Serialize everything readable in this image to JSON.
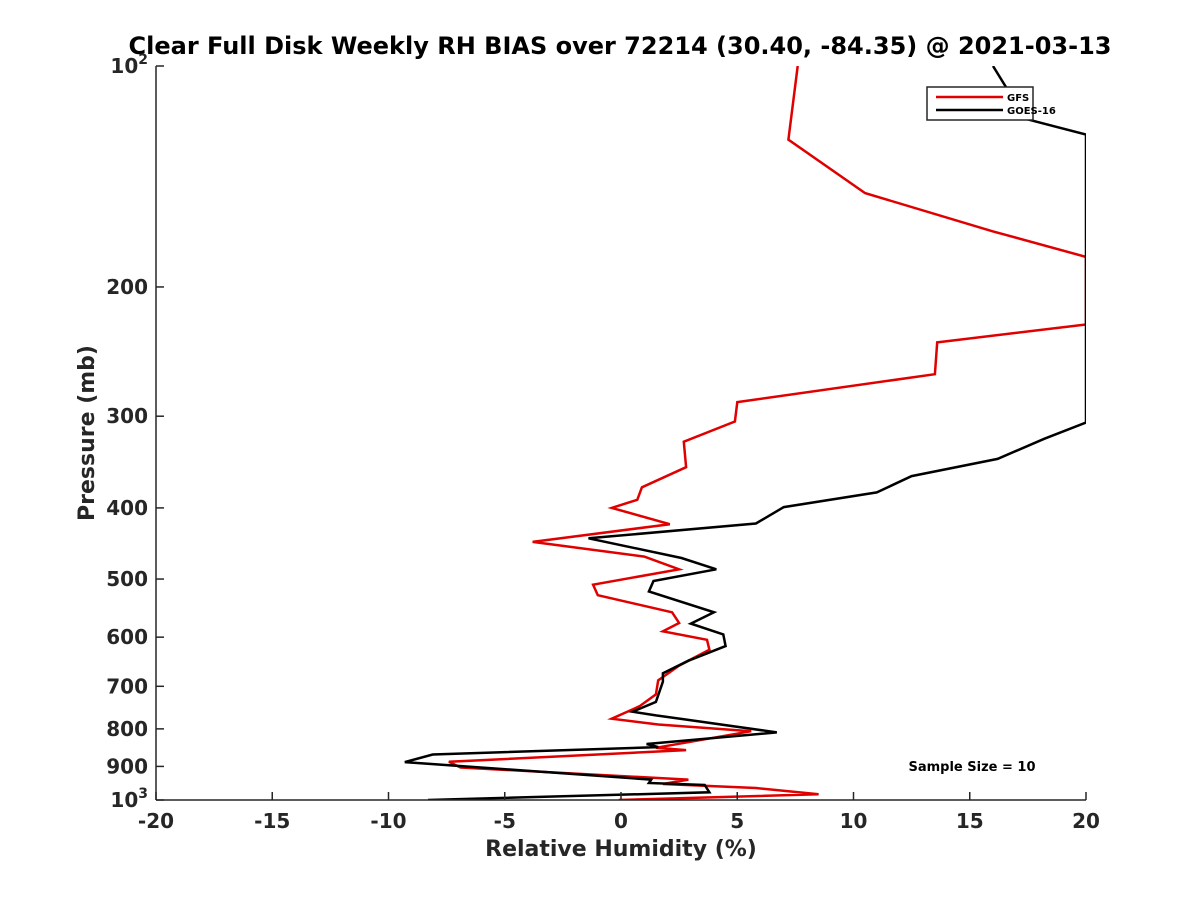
{
  "chart_data": {
    "type": "line",
    "title": "Clear Full Disk Weekly RH BIAS over 72214 (30.40, -84.35) @ 2021-03-13",
    "xlabel": "Relative Humidity (%)",
    "ylabel": "Pressure (mb)",
    "xlim": [
      -20,
      20
    ],
    "ylim": [
      100,
      1000
    ],
    "yscale": "log",
    "y_reversed": true,
    "x_ticks": [
      -20,
      -15,
      -10,
      -5,
      0,
      5,
      10,
      15,
      20
    ],
    "x_tick_labels": [
      "-20",
      "-15",
      "-10",
      "-5",
      "0",
      "5",
      "10",
      "15",
      "20"
    ],
    "y_ticks": [
      100,
      200,
      300,
      400,
      500,
      600,
      700,
      800,
      900,
      1000
    ],
    "y_tick_labels": [
      "10^2",
      "200",
      "300",
      "400",
      "500",
      "600",
      "700",
      "800",
      "900",
      "10^3"
    ],
    "grid": false,
    "legend_position": "top-right",
    "annotation": "Sample Size = 10",
    "series": [
      {
        "name": "GFS",
        "color": "#e00000",
        "points": [
          [
            7.6,
            100
          ],
          [
            7.2,
            126
          ],
          [
            10.5,
            149
          ],
          [
            16.0,
            168
          ],
          [
            20.0,
            182
          ],
          [
            20.0,
            225
          ],
          [
            13.6,
            238
          ],
          [
            13.5,
            263
          ],
          [
            5.0,
            287
          ],
          [
            4.9,
            305
          ],
          [
            2.7,
            325
          ],
          [
            2.8,
            352
          ],
          [
            0.9,
            375
          ],
          [
            0.7,
            390
          ],
          [
            -0.4,
            400
          ],
          [
            2.1,
            421
          ],
          [
            -3.8,
            445
          ],
          [
            1.0,
            466
          ],
          [
            2.5,
            485
          ],
          [
            -1.2,
            509
          ],
          [
            -1.0,
            526
          ],
          [
            2.2,
            555
          ],
          [
            2.5,
            574
          ],
          [
            1.8,
            589
          ],
          [
            3.7,
            605
          ],
          [
            3.8,
            624
          ],
          [
            2.5,
            656
          ],
          [
            1.6,
            687
          ],
          [
            1.5,
            718
          ],
          [
            0.8,
            745
          ],
          [
            -0.4,
            775
          ],
          [
            1.6,
            789
          ],
          [
            5.6,
            806
          ],
          [
            1.5,
            849
          ],
          [
            2.8,
            855
          ],
          [
            -7.4,
            887
          ],
          [
            -6.9,
            903
          ],
          [
            2.9,
            938
          ],
          [
            1.8,
            951
          ],
          [
            5.8,
            963
          ],
          [
            8.5,
            982
          ],
          [
            -0.1,
            1000
          ]
        ]
      },
      {
        "name": "GOES-16",
        "color": "#000000",
        "points": [
          [
            16.0,
            100
          ],
          [
            17.4,
            118
          ],
          [
            20.0,
            124
          ],
          [
            20.0,
            306
          ],
          [
            18.2,
            322
          ],
          [
            16.2,
            343
          ],
          [
            12.5,
            362
          ],
          [
            11.0,
            381
          ],
          [
            7.0,
            399
          ],
          [
            5.8,
            420
          ],
          [
            -1.4,
            440
          ],
          [
            2.6,
            468
          ],
          [
            4.1,
            485
          ],
          [
            1.4,
            503
          ],
          [
            1.2,
            520
          ],
          [
            4.0,
            555
          ],
          [
            3.0,
            575
          ],
          [
            4.4,
            595
          ],
          [
            4.5,
            617
          ],
          [
            2.9,
            646
          ],
          [
            1.8,
            672
          ],
          [
            1.8,
            690
          ],
          [
            1.5,
            735
          ],
          [
            0.5,
            758
          ],
          [
            1.5,
            767
          ],
          [
            2.7,
            776
          ],
          [
            6.7,
            809
          ],
          [
            1.1,
            839
          ],
          [
            1.6,
            847
          ],
          [
            -8.1,
            867
          ],
          [
            -9.3,
            888
          ],
          [
            1.3,
            938
          ],
          [
            1.2,
            948
          ],
          [
            3.6,
            954
          ],
          [
            3.8,
            976
          ],
          [
            -8.3,
            1000
          ]
        ]
      }
    ]
  }
}
